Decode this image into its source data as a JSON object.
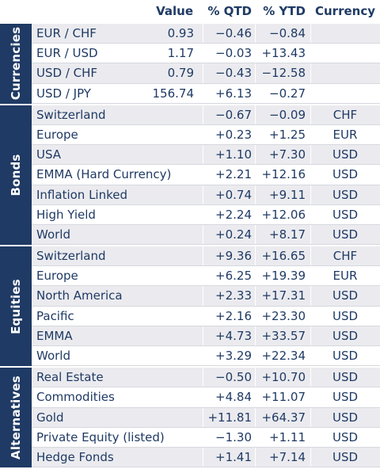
{
  "header": {
    "value": "Value",
    "qtd": "% QTD",
    "ytd": "% YTD",
    "currency": "Currency"
  },
  "sections": [
    {
      "label": "Currencies",
      "rows": [
        {
          "name": "EUR / CHF",
          "value": "0.93",
          "qtd": "−0.46",
          "ytd": "−0.84",
          "currency": ""
        },
        {
          "name": "EUR / USD",
          "value": "1.17",
          "qtd": "−0.03",
          "ytd": "+13.43",
          "currency": ""
        },
        {
          "name": "USD / CHF",
          "value": "0.79",
          "qtd": "−0.43",
          "ytd": "−12.58",
          "currency": ""
        },
        {
          "name": "USD / JPY",
          "value": "156.74",
          "qtd": "+6.13",
          "ytd": "−0.27",
          "currency": ""
        }
      ]
    },
    {
      "label": "Bonds",
      "rows": [
        {
          "name": "Switzerland",
          "value": "",
          "qtd": "−0.67",
          "ytd": "−0.09",
          "currency": "CHF"
        },
        {
          "name": "Europe",
          "value": "",
          "qtd": "+0.23",
          "ytd": "+1.25",
          "currency": "EUR"
        },
        {
          "name": "USA",
          "value": "",
          "qtd": "+1.10",
          "ytd": "+7.30",
          "currency": "USD"
        },
        {
          "name": "EMMA (Hard Currency)",
          "value": "",
          "qtd": "+2.21",
          "ytd": "+12.16",
          "currency": "USD"
        },
        {
          "name": "Inflation Linked",
          "value": "",
          "qtd": "+0.74",
          "ytd": "+9.11",
          "currency": "USD"
        },
        {
          "name": "High Yield",
          "value": "",
          "qtd": "+2.24",
          "ytd": "+12.06",
          "currency": "USD"
        },
        {
          "name": "World",
          "value": "",
          "qtd": "+0.24",
          "ytd": "+8.17",
          "currency": "USD"
        }
      ]
    },
    {
      "label": "Equities",
      "rows": [
        {
          "name": "Switzerland",
          "value": "",
          "qtd": "+9.36",
          "ytd": "+16.65",
          "currency": "CHF"
        },
        {
          "name": "Europe",
          "value": "",
          "qtd": "+6.25",
          "ytd": "+19.39",
          "currency": "EUR"
        },
        {
          "name": "North America",
          "value": "",
          "qtd": "+2.33",
          "ytd": "+17.31",
          "currency": "USD"
        },
        {
          "name": "Pacific",
          "value": "",
          "qtd": "+2.16",
          "ytd": "+23.30",
          "currency": "USD"
        },
        {
          "name": "EMMA",
          "value": "",
          "qtd": "+4.73",
          "ytd": "+33.57",
          "currency": "USD"
        },
        {
          "name": "World",
          "value": "",
          "qtd": "+3.29",
          "ytd": "+22.34",
          "currency": "USD"
        }
      ]
    },
    {
      "label": "Alternatives",
      "rows": [
        {
          "name": "Real Estate",
          "value": "",
          "qtd": "−0.50",
          "ytd": "+10.70",
          "currency": "USD"
        },
        {
          "name": "Commodities",
          "value": "",
          "qtd": "+4.84",
          "ytd": "+11.07",
          "currency": "USD"
        },
        {
          "name": "Gold",
          "value": "",
          "qtd": "+11.81",
          "ytd": "+64.37",
          "currency": "USD"
        },
        {
          "name": "Private Equity (listed)",
          "value": "",
          "qtd": "−1.30",
          "ytd": "+1.11",
          "currency": "USD"
        },
        {
          "name": "Hedge Fonds",
          "value": "",
          "qtd": "+1.41",
          "ytd": "+7.14",
          "currency": "USD"
        }
      ]
    }
  ]
}
